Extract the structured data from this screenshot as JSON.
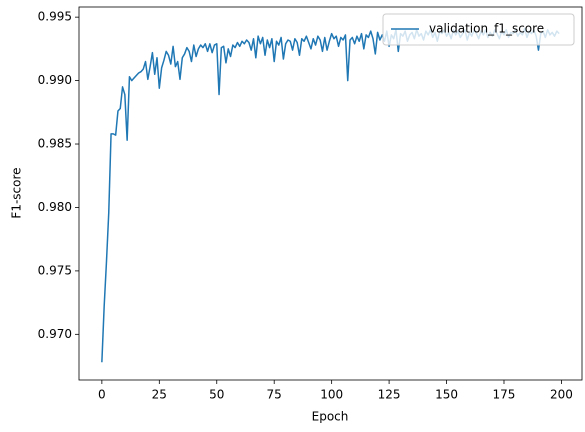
{
  "chart_data": {
    "type": "line",
    "xlabel": "Epoch",
    "ylabel": "F1-score",
    "x": [
      0,
      1,
      2,
      3,
      4,
      5,
      6,
      7,
      8,
      9,
      10,
      11,
      12,
      13,
      14,
      15,
      16,
      17,
      18,
      19,
      20,
      21,
      22,
      23,
      24,
      25,
      26,
      27,
      28,
      29,
      30,
      31,
      32,
      33,
      34,
      35,
      36,
      37,
      38,
      39,
      40,
      41,
      42,
      43,
      44,
      45,
      46,
      47,
      48,
      49,
      50,
      51,
      52,
      53,
      54,
      55,
      56,
      57,
      58,
      59,
      60,
      61,
      62,
      63,
      64,
      65,
      66,
      67,
      68,
      69,
      70,
      71,
      72,
      73,
      74,
      75,
      76,
      77,
      78,
      79,
      80,
      81,
      82,
      83,
      84,
      85,
      86,
      87,
      88,
      89,
      90,
      91,
      92,
      93,
      94,
      95,
      96,
      97,
      98,
      99,
      100,
      101,
      102,
      103,
      104,
      105,
      106,
      107,
      108,
      109,
      110,
      111,
      112,
      113,
      114,
      115,
      116,
      117,
      118,
      119,
      120,
      121,
      122,
      123,
      124,
      125,
      126,
      127,
      128,
      129,
      130,
      131,
      132,
      133,
      134,
      135,
      136,
      137,
      138,
      139,
      140,
      141,
      142,
      143,
      144,
      145,
      146,
      147,
      148,
      149,
      150,
      151,
      152,
      153,
      154,
      155,
      156,
      157,
      158,
      159,
      160,
      161,
      162,
      163,
      164,
      165,
      166,
      167,
      168,
      169,
      170,
      171,
      172,
      173,
      174,
      175,
      176,
      177,
      178,
      179,
      180,
      181,
      182,
      183,
      184,
      185,
      186,
      187,
      188,
      189,
      190,
      191,
      192,
      193,
      194,
      195,
      196,
      197,
      198,
      199
    ],
    "series": [
      {
        "name": "validation_f1_score",
        "color": "#1f77b4",
        "values": [
          0.9678,
          0.9722,
          0.9757,
          0.9796,
          0.9858,
          0.9858,
          0.9857,
          0.9876,
          0.9878,
          0.9895,
          0.9889,
          0.9853,
          0.9903,
          0.99,
          0.9902,
          0.9904,
          0.9906,
          0.9907,
          0.9909,
          0.9915,
          0.9901,
          0.9911,
          0.9922,
          0.9905,
          0.9918,
          0.9894,
          0.991,
          0.9916,
          0.9923,
          0.992,
          0.9913,
          0.9927,
          0.9911,
          0.9915,
          0.9901,
          0.9918,
          0.9921,
          0.9926,
          0.9923,
          0.9915,
          0.9928,
          0.9919,
          0.9925,
          0.9928,
          0.9926,
          0.9929,
          0.9923,
          0.9929,
          0.9922,
          0.9928,
          0.9929,
          0.9889,
          0.9926,
          0.9927,
          0.9914,
          0.9925,
          0.9919,
          0.9928,
          0.9926,
          0.993,
          0.9927,
          0.9931,
          0.9929,
          0.9932,
          0.993,
          0.9924,
          0.9933,
          0.9918,
          0.9935,
          0.9929,
          0.9934,
          0.992,
          0.9932,
          0.9926,
          0.9933,
          0.9915,
          0.9931,
          0.9928,
          0.9934,
          0.9917,
          0.9929,
          0.9932,
          0.9931,
          0.9924,
          0.9933,
          0.993,
          0.992,
          0.9933,
          0.9931,
          0.9935,
          0.993,
          0.9925,
          0.9933,
          0.9928,
          0.9935,
          0.9932,
          0.9923,
          0.9934,
          0.9924,
          0.9931,
          0.9937,
          0.9933,
          0.9935,
          0.9927,
          0.9934,
          0.9932,
          0.9936,
          0.99,
          0.9932,
          0.9934,
          0.9929,
          0.9935,
          0.9931,
          0.9937,
          0.9925,
          0.9936,
          0.9934,
          0.9939,
          0.9933,
          0.9921,
          0.9938,
          0.9932,
          0.9936,
          0.9931,
          0.9939,
          0.9927,
          0.9936,
          0.9933,
          0.994,
          0.9923,
          0.9937,
          0.9935,
          0.9939,
          0.9931,
          0.9936,
          0.9938,
          0.9933,
          0.994,
          0.9935,
          0.9937,
          0.9932,
          0.9939,
          0.9936,
          0.994,
          0.9934,
          0.9938,
          0.9931,
          0.9939,
          0.9937,
          0.994,
          0.9935,
          0.9938,
          0.9933,
          0.994,
          0.9936,
          0.9939,
          0.9934,
          0.9937,
          0.994,
          0.9932,
          0.9938,
          0.9935,
          0.994,
          0.9937,
          0.9933,
          0.9939,
          0.9936,
          0.994,
          0.9934,
          0.9938,
          0.9935,
          0.994,
          0.9937,
          0.9933,
          0.9939,
          0.9936,
          0.994,
          0.9934,
          0.9938,
          0.9937,
          0.994,
          0.9935,
          0.9938,
          0.9936,
          0.9941,
          0.9934,
          0.9939,
          0.9937,
          0.994,
          0.9935,
          0.9924,
          0.9937,
          0.9939,
          0.9934,
          0.994,
          0.9936,
          0.9938,
          0.9935,
          0.9939,
          0.9937
        ]
      }
    ],
    "xlim": [
      -9.95,
      208.95
    ],
    "ylim": [
      0.9664,
      0.9958
    ],
    "xticks": [
      0,
      25,
      50,
      75,
      100,
      125,
      150,
      175,
      200
    ],
    "yticks": [
      {
        "value": 0.97,
        "label": "0.970"
      },
      0.975,
      {
        "value": 0.98,
        "label": "0.980"
      },
      0.985,
      {
        "value": 0.99,
        "label": "0.990"
      },
      0.995
    ],
    "legend": "upper right"
  }
}
